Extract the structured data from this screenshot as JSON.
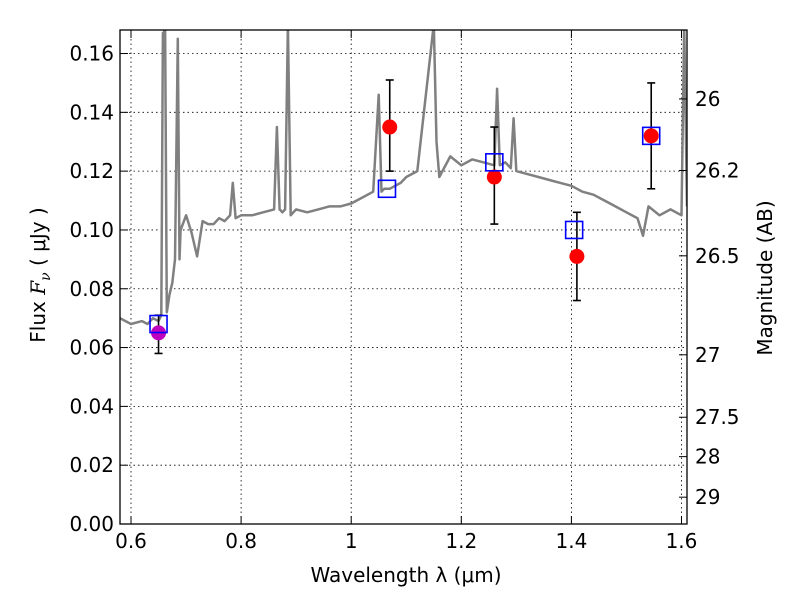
{
  "chart_data": {
    "type": "scatter",
    "xlabel": "Wavelength  λ (μm)",
    "ylabel_parts": {
      "prefix": "Flux ",
      "symbol": "F",
      "subscript": "ν",
      "unit": " ( μJy )"
    },
    "y2label": "Magnitude (AB)",
    "xlim": [
      0.58,
      1.61
    ],
    "ylim": [
      0.0,
      0.168
    ],
    "x_ticks": [
      0.6,
      0.8,
      1.0,
      1.2,
      1.4,
      1.6
    ],
    "x_tick_labels": [
      "0.6",
      "0.8",
      "1",
      "1.2",
      "1.4",
      "1.6"
    ],
    "y_ticks": [
      0.0,
      0.02,
      0.04,
      0.06,
      0.08,
      0.1,
      0.12,
      0.14,
      0.16
    ],
    "y_tick_labels": [
      "0.00",
      "0.02",
      "0.04",
      "0.06",
      "0.08",
      "0.10",
      "0.12",
      "0.14",
      "0.16"
    ],
    "y2_ticks": [
      26,
      26.2,
      26.5,
      27,
      27.5,
      28,
      29
    ],
    "y2_tick_labels": [
      "26",
      "26.2",
      "26.5",
      "27",
      "27.5",
      "28",
      "29"
    ],
    "grid": true,
    "colors": {
      "spectrum": "#808080",
      "observed": "#ff0000",
      "observed_first": "#bf00bf",
      "model": "#0000ff",
      "errorbar": "#000000"
    },
    "series": [
      {
        "kind": "line",
        "x": [
          0.58,
          0.6,
          0.62,
          0.63,
          0.64,
          0.65,
          0.655,
          0.658,
          0.66,
          0.662,
          0.665,
          0.67,
          0.675,
          0.68,
          0.685,
          0.688,
          0.69,
          0.7,
          0.71,
          0.72,
          0.73,
          0.74,
          0.75,
          0.76,
          0.77,
          0.78,
          0.785,
          0.79,
          0.8,
          0.82,
          0.84,
          0.86,
          0.865,
          0.87,
          0.875,
          0.88,
          0.885,
          0.89,
          0.895,
          0.9,
          0.92,
          0.94,
          0.96,
          0.98,
          1.0,
          1.02,
          1.04,
          1.05,
          1.055,
          1.06,
          1.07,
          1.08,
          1.09,
          1.1,
          1.12,
          1.15,
          1.155,
          1.16,
          1.18,
          1.2,
          1.22,
          1.24,
          1.26,
          1.265,
          1.27,
          1.28,
          1.29,
          1.295,
          1.3,
          1.32,
          1.34,
          1.36,
          1.38,
          1.4,
          1.42,
          1.44,
          1.46,
          1.48,
          1.5,
          1.52,
          1.53,
          1.54,
          1.56,
          1.58,
          1.6,
          1.605,
          1.61
        ],
        "y": [
          0.07,
          0.068,
          0.069,
          0.068,
          0.07,
          0.069,
          0.071,
          0.167,
          0.167,
          0.17,
          0.072,
          0.078,
          0.082,
          0.09,
          0.165,
          0.09,
          0.1,
          0.105,
          0.099,
          0.091,
          0.103,
          0.102,
          0.102,
          0.104,
          0.103,
          0.105,
          0.116,
          0.104,
          0.105,
          0.105,
          0.106,
          0.107,
          0.135,
          0.107,
          0.106,
          0.107,
          0.17,
          0.105,
          0.106,
          0.107,
          0.106,
          0.107,
          0.108,
          0.108,
          0.109,
          0.111,
          0.113,
          0.146,
          0.113,
          0.114,
          0.114,
          0.115,
          0.116,
          0.118,
          0.12,
          0.17,
          0.13,
          0.118,
          0.125,
          0.122,
          0.124,
          0.123,
          0.122,
          0.148,
          0.122,
          0.123,
          0.121,
          0.138,
          0.12,
          0.119,
          0.118,
          0.117,
          0.116,
          0.115,
          0.113,
          0.112,
          0.11,
          0.108,
          0.106,
          0.104,
          0.098,
          0.108,
          0.105,
          0.107,
          0.105,
          0.17,
          0.108
        ]
      },
      {
        "kind": "points-errorbars",
        "marker": "circle",
        "x": [
          0.65,
          1.07,
          1.26,
          1.41,
          1.545
        ],
        "y": [
          0.065,
          0.135,
          0.118,
          0.091,
          0.132
        ],
        "yerr_low": [
          0.058,
          0.12,
          0.102,
          0.076,
          0.114
        ],
        "yerr_high": [
          0.071,
          0.151,
          0.135,
          0.106,
          0.15
        ]
      },
      {
        "kind": "points",
        "marker": "square-open",
        "x": [
          0.65,
          1.065,
          1.26,
          1.405,
          1.545
        ],
        "y": [
          0.068,
          0.114,
          0.123,
          0.1,
          0.132
        ]
      }
    ]
  }
}
